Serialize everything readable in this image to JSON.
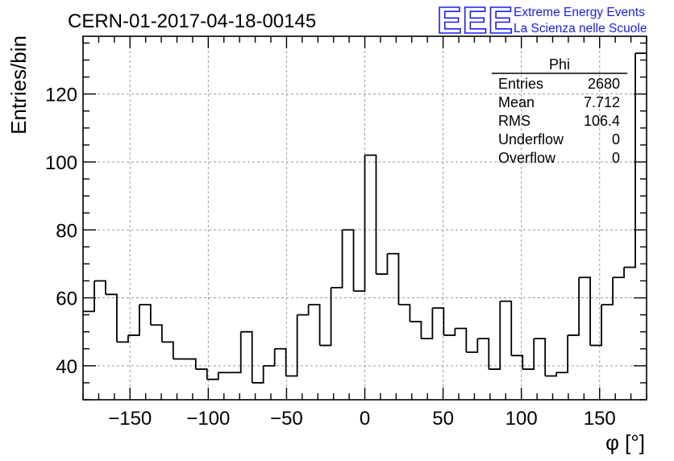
{
  "header": {
    "run_title": "CERN-01-2017-04-18-00145",
    "logo_text": "EEE",
    "logo_line1": "Extreme Energy Events",
    "logo_line2": "La Scienza nelle Scuole"
  },
  "stats_box": {
    "title": "Phi",
    "rows": [
      {
        "label": "Entries",
        "value": "2680"
      },
      {
        "label": "Mean",
        "value": "7.712"
      },
      {
        "label": "RMS",
        "value": "106.4"
      },
      {
        "label": "Underflow",
        "value": "0"
      },
      {
        "label": "Overflow",
        "value": "0"
      }
    ]
  },
  "chart_data": {
    "type": "bar",
    "style": "step-histogram",
    "xlabel": "φ [°]",
    "ylabel": "Entries/bin",
    "xlim": [
      -180,
      180
    ],
    "ylim": [
      30,
      137
    ],
    "bin_width": 7.2,
    "xticks": [
      -150,
      -100,
      -50,
      0,
      50,
      100,
      150
    ],
    "yticks": [
      40,
      60,
      80,
      100,
      120
    ],
    "grid": true,
    "values": [
      56,
      65,
      61,
      47,
      49,
      58,
      52,
      47,
      42,
      42,
      39,
      36,
      38,
      38,
      50,
      35,
      40,
      45,
      37,
      55,
      58,
      46,
      63,
      80,
      62,
      102,
      67,
      73,
      58,
      53,
      48,
      57,
      49,
      51,
      44,
      48,
      39,
      59,
      43,
      39,
      48,
      37,
      38,
      49,
      66,
      46,
      58,
      66,
      69,
      132
    ],
    "colors": {
      "line": "#000000",
      "grid": "#9a9a9a",
      "logo": "#1a1aff"
    }
  }
}
